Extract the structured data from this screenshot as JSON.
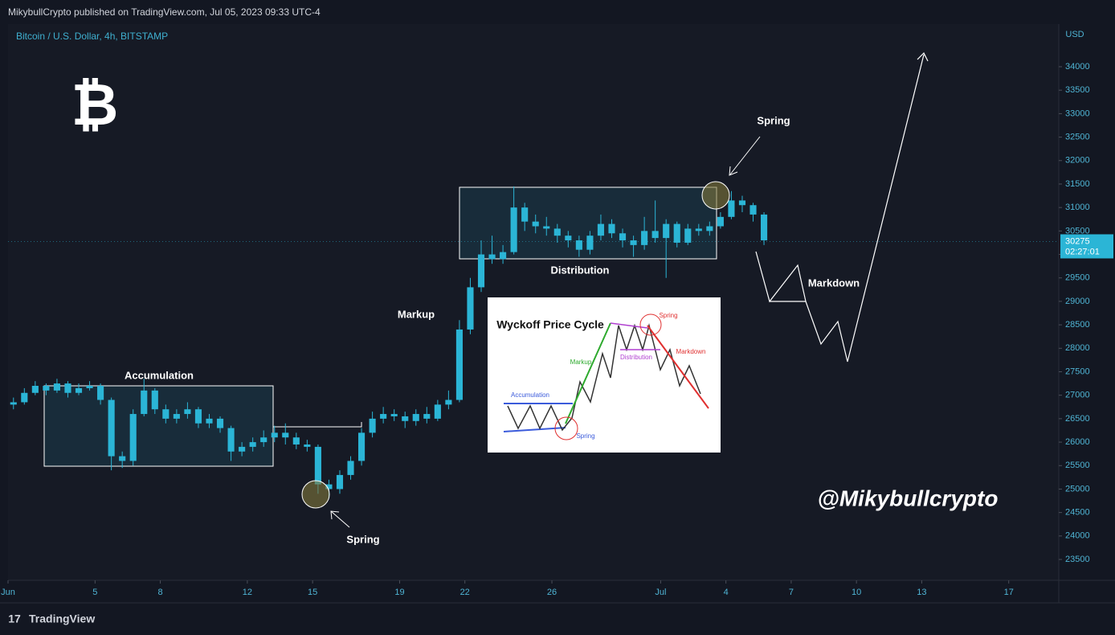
{
  "header": "MikybullCrypto published on TradingView.com, Jul 05, 2023 09:33 UTC-4",
  "logo": "₿",
  "watermark": "@Mikybullcrypto",
  "footer": "TradingView",
  "annotations": {
    "accumulation": "Accumulation",
    "distribution": "Distribution",
    "markup": "Markup",
    "markdown": "Markdown",
    "spring_low": "Spring",
    "spring_high": "Spring"
  },
  "inset": {
    "title": "Wyckoff Price Cycle",
    "accumulation": "Accumulation",
    "markup": "Markup",
    "distribution": "Distribution",
    "spring_top": "Spring",
    "markdown": "Markdown",
    "spring_bottom": "Spring"
  },
  "chart_data": {
    "type": "candlestick",
    "title": "Bitcoin / U.S. Dollar, 4h, BITSTAMP",
    "y_axis_label": "USD",
    "color": "#2bb5d6",
    "x": [
      0.25,
      0.75,
      1.25,
      1.75,
      2.25,
      2.75,
      3.25,
      3.75,
      4.25,
      4.75,
      5.25,
      5.75,
      6.25,
      6.75,
      7.25,
      7.75,
      8.25,
      8.75,
      9.25,
      9.75,
      10.25,
      10.75,
      11.25,
      11.75,
      12.25,
      12.75,
      13.25,
      13.75,
      14.25,
      14.75,
      15.25,
      15.75,
      16.25,
      16.75,
      17.25,
      17.75,
      18.25,
      18.75,
      19.25,
      19.75,
      20.25,
      20.75,
      21.25,
      21.75,
      22.25,
      22.75,
      23.25,
      23.75,
      24.25,
      24.75,
      25.25,
      25.75,
      26.25,
      26.75,
      27.25,
      27.75,
      28.25,
      28.75,
      29.25,
      29.75,
      30.25,
      30.75,
      31.25,
      31.75,
      32.25,
      32.75,
      33.25,
      33.75,
      34.25,
      34.75
    ],
    "open": [
      26800,
      26850,
      27050,
      27200,
      27100,
      27250,
      27050,
      27150,
      27200,
      26900,
      25700,
      25600,
      26600,
      27100,
      26700,
      26500,
      26600,
      26700,
      26400,
      26500,
      26300,
      25800,
      25900,
      26000,
      26100,
      26200,
      26100,
      25950,
      25900,
      25100,
      25000,
      25300,
      25600,
      26200,
      26500,
      26600,
      26550,
      26450,
      26600,
      26500,
      26800,
      26900,
      28400,
      29300,
      30000,
      29900,
      30050,
      31000,
      30700,
      30600,
      30550,
      30400,
      30300,
      30100,
      30400,
      30650,
      30450,
      30300,
      30200,
      30500,
      30350,
      30650,
      30250,
      30550,
      30500,
      30600,
      30800,
      31150,
      31050,
      30850
    ],
    "close": [
      26850,
      27050,
      27200,
      27100,
      27250,
      27050,
      27150,
      27200,
      26900,
      25700,
      25600,
      26600,
      27100,
      26700,
      26500,
      26600,
      26700,
      26400,
      26500,
      26300,
      25800,
      25900,
      26000,
      26100,
      26200,
      26100,
      25950,
      25900,
      25100,
      25000,
      25300,
      25600,
      26200,
      26500,
      26600,
      26550,
      26450,
      26600,
      26500,
      26800,
      26900,
      28400,
      29300,
      30000,
      29900,
      30050,
      31000,
      30700,
      30600,
      30550,
      30400,
      30300,
      30100,
      30400,
      30650,
      30450,
      30300,
      30200,
      30500,
      30350,
      30650,
      30250,
      30550,
      30500,
      30600,
      30800,
      31150,
      31050,
      30850,
      30300
    ],
    "high": [
      26950,
      27150,
      27300,
      27250,
      27350,
      27300,
      27250,
      27300,
      27250,
      26950,
      25800,
      26700,
      27350,
      27150,
      26800,
      26700,
      26850,
      26750,
      26600,
      26550,
      26350,
      26000,
      26100,
      26250,
      26350,
      26400,
      26200,
      26050,
      25950,
      25200,
      25400,
      25700,
      26300,
      26650,
      26750,
      26700,
      26650,
      26700,
      26750,
      26900,
      27100,
      28600,
      29500,
      30300,
      30400,
      30200,
      31450,
      31100,
      30850,
      30800,
      30650,
      30500,
      30400,
      30500,
      30850,
      30750,
      30550,
      30400,
      30800,
      31150,
      30750,
      30700,
      30650,
      30650,
      30700,
      30900,
      31350,
      31250,
      31100,
      30900
    ],
    "low": [
      26700,
      26800,
      27000,
      27000,
      27050,
      26950,
      27000,
      27100,
      26800,
      25400,
      25450,
      25500,
      26550,
      26600,
      26400,
      26400,
      26500,
      26300,
      26300,
      26200,
      25600,
      25700,
      25800,
      25900,
      26000,
      25950,
      25850,
      25800,
      24900,
      24800,
      24900,
      25200,
      25500,
      26100,
      26400,
      26450,
      26300,
      26350,
      26400,
      26450,
      26700,
      26850,
      28300,
      29200,
      29800,
      29800,
      30000,
      30500,
      30450,
      30400,
      30250,
      30150,
      29950,
      30000,
      30300,
      30350,
      30150,
      29950,
      30100,
      30250,
      29500,
      30150,
      30200,
      30400,
      30400,
      30550,
      30750,
      30900,
      30700,
      30200
    ],
    "xlim": [
      0,
      48.3
    ],
    "xticks": [
      {
        "value": 0,
        "label": "Jun"
      },
      {
        "value": 4,
        "label": "5"
      },
      {
        "value": 7,
        "label": "8"
      },
      {
        "value": 11,
        "label": "12"
      },
      {
        "value": 14,
        "label": "15"
      },
      {
        "value": 18,
        "label": "19"
      },
      {
        "value": 21,
        "label": "22"
      },
      {
        "value": 25,
        "label": "26"
      },
      {
        "value": 30,
        "label": "Jul"
      },
      {
        "value": 33,
        "label": "4"
      },
      {
        "value": 36,
        "label": "7"
      },
      {
        "value": 39,
        "label": "10"
      },
      {
        "value": 42,
        "label": "13"
      },
      {
        "value": 46,
        "label": "17"
      }
    ],
    "ylim": [
      23055,
      34908
    ],
    "yticks": [
      23500,
      24000,
      24500,
      25000,
      25500,
      26000,
      26500,
      27000,
      27500,
      28000,
      28500,
      29000,
      29500,
      30000,
      30500,
      31000,
      31500,
      32000,
      32500,
      33000,
      33500,
      34000
    ],
    "last_price": {
      "value": 30275,
      "countdown": "02:27:01"
    },
    "grid": false
  }
}
